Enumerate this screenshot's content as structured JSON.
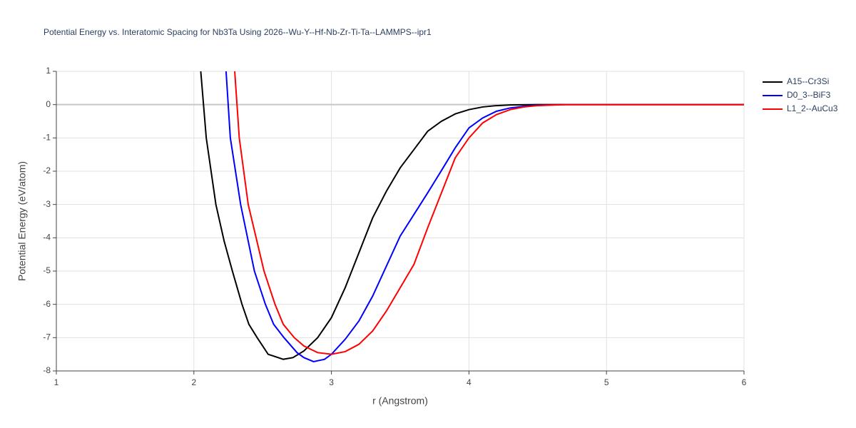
{
  "chart_data": {
    "type": "line",
    "title": "Potential Energy vs. Interatomic Spacing for Nb3Ta Using 2026--Wu-Y--Hf-Nb-Zr-Ti-Ta--LAMMPS--ipr1",
    "x_label": "r (Angstrom)",
    "y_label": "Potential Energy (eV/atom)",
    "xlim": [
      1,
      6
    ],
    "ylim": [
      -8,
      1
    ],
    "xticks": [
      1,
      2,
      3,
      4,
      5,
      6
    ],
    "yticks": [
      -8,
      -7,
      -6,
      -5,
      -4,
      -3,
      -2,
      -1,
      0,
      1
    ],
    "grid": true,
    "legend": "right",
    "series": [
      {
        "name": "A15--Cr3Si",
        "color": "#000000",
        "x": [
          2.05,
          2.09,
          2.16,
          2.22,
          2.28,
          2.35,
          2.4,
          2.46,
          2.54,
          2.65,
          2.72,
          2.8,
          2.9,
          3.0,
          3.1,
          3.2,
          3.3,
          3.4,
          3.5,
          3.6,
          3.7,
          3.8,
          3.9,
          4.0,
          4.1,
          4.2,
          4.3,
          4.5,
          6.0
        ],
        "values": [
          1,
          -1,
          -3,
          -4.1,
          -5,
          -6,
          -6.6,
          -7,
          -7.5,
          -7.65,
          -7.6,
          -7.4,
          -7.0,
          -6.4,
          -5.5,
          -4.45,
          -3.4,
          -2.6,
          -1.9,
          -1.35,
          -0.8,
          -0.5,
          -0.28,
          -0.15,
          -0.07,
          -0.03,
          -0.01,
          0,
          0
        ]
      },
      {
        "name": "D0_3--BiF3",
        "color": "#0000ff",
        "x": [
          2.234,
          2.265,
          2.34,
          2.44,
          2.52,
          2.58,
          2.655,
          2.75,
          2.8,
          2.87,
          2.95,
          3.0,
          3.1,
          3.2,
          3.3,
          3.4,
          3.5,
          3.6,
          3.7,
          3.8,
          3.9,
          4.0,
          4.1,
          4.2,
          4.3,
          4.4,
          4.5,
          4.7,
          6.0
        ],
        "values": [
          1,
          -1,
          -3,
          -5,
          -6,
          -6.6,
          -7,
          -7.45,
          -7.6,
          -7.72,
          -7.65,
          -7.5,
          -7.05,
          -6.5,
          -5.75,
          -4.85,
          -3.95,
          -3.3,
          -2.65,
          -1.98,
          -1.3,
          -0.7,
          -0.4,
          -0.2,
          -0.1,
          -0.05,
          -0.02,
          0,
          0
        ]
      },
      {
        "name": "L1_2--AuCu3",
        "color": "#ff0000",
        "x": [
          2.297,
          2.33,
          2.395,
          2.51,
          2.59,
          2.65,
          2.73,
          2.8,
          2.9,
          3.0,
          3.1,
          3.2,
          3.3,
          3.4,
          3.5,
          3.6,
          3.7,
          3.8,
          3.9,
          4.0,
          4.1,
          4.2,
          4.3,
          4.4,
          4.5,
          4.7,
          6.0
        ],
        "values": [
          1,
          -1,
          -3,
          -5,
          -6,
          -6.6,
          -7,
          -7.25,
          -7.45,
          -7.5,
          -7.42,
          -7.2,
          -6.8,
          -6.2,
          -5.5,
          -4.8,
          -3.7,
          -2.65,
          -1.6,
          -1.0,
          -0.55,
          -0.3,
          -0.15,
          -0.07,
          -0.03,
          0,
          0
        ]
      }
    ]
  }
}
